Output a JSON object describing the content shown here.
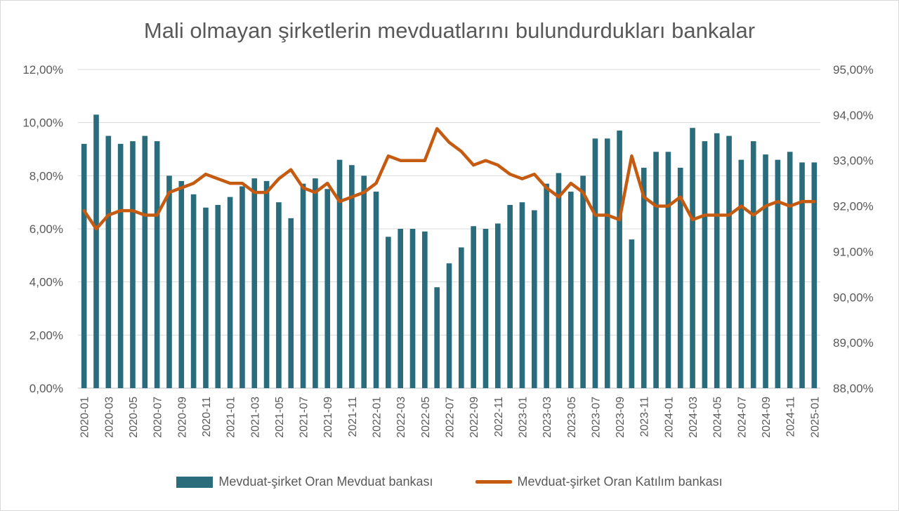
{
  "chart_data": {
    "type": "bar",
    "title": "Mali olmayan şirketlerin mevduatlarını bulundurdukları bankalar",
    "categories": [
      "2020-01",
      "2020-02",
      "2020-03",
      "2020-04",
      "2020-05",
      "2020-06",
      "2020-07",
      "2020-08",
      "2020-09",
      "2020-10",
      "2020-11",
      "2020-12",
      "2021-01",
      "2021-02",
      "2021-03",
      "2021-04",
      "2021-05",
      "2021-06",
      "2021-07",
      "2021-08",
      "2021-09",
      "2021-10",
      "2021-11",
      "2021-12",
      "2022-01",
      "2022-02",
      "2022-03",
      "2022-04",
      "2022-05",
      "2022-06",
      "2022-07",
      "2022-08",
      "2022-09",
      "2022-10",
      "2022-11",
      "2022-12",
      "2023-01",
      "2023-02",
      "2023-03",
      "2023-04",
      "2023-05",
      "2023-06",
      "2023-07",
      "2023-08",
      "2023-09",
      "2023-10",
      "2023-11",
      "2023-12",
      "2024-01",
      "2024-02",
      "2024-03",
      "2024-04",
      "2024-05",
      "2024-06",
      "2024-07",
      "2024-08",
      "2024-09",
      "2024-10",
      "2024-11",
      "2024-12",
      "2025-01"
    ],
    "x_tick_labels": [
      "2020-01",
      "2020-03",
      "2020-05",
      "2020-07",
      "2020-09",
      "2020-11",
      "2021-01",
      "2021-03",
      "2021-05",
      "2021-07",
      "2021-09",
      "2021-11",
      "2022-01",
      "2022-03",
      "2022-05",
      "2022-07",
      "2022-09",
      "2022-11",
      "2023-01",
      "2023-03",
      "2023-05",
      "2023-07",
      "2023-09",
      "2023-11",
      "2024-01",
      "2024-03",
      "2024-05",
      "2024-07",
      "2024-09",
      "2024-11",
      "2025-01"
    ],
    "series": [
      {
        "name": "Mevduat-şirket Oran Mevduat bankası",
        "type": "bar",
        "axis": "left",
        "color": "#2a6b7c",
        "values": [
          9.2,
          10.3,
          9.5,
          9.2,
          9.3,
          9.5,
          9.3,
          8.0,
          7.8,
          7.3,
          6.8,
          6.9,
          7.2,
          7.6,
          7.9,
          7.8,
          7.0,
          6.4,
          7.7,
          7.9,
          7.5,
          8.6,
          8.4,
          8.0,
          7.4,
          5.7,
          6.0,
          6.0,
          5.9,
          3.8,
          4.7,
          5.3,
          6.1,
          6.0,
          6.2,
          6.9,
          7.0,
          6.7,
          7.7,
          8.1,
          7.4,
          8.0,
          9.4,
          9.4,
          9.7,
          5.6,
          8.3,
          8.9,
          8.9,
          8.3,
          9.8,
          9.3,
          9.6,
          9.5,
          8.6,
          9.3,
          8.8,
          8.6,
          8.9,
          8.5,
          8.5
        ]
      },
      {
        "name": "Mevduat-şirket Oran Katılım bankası",
        "type": "line",
        "axis": "right",
        "color": "#c55a11",
        "values": [
          91.9,
          91.5,
          91.8,
          91.9,
          91.9,
          91.8,
          91.8,
          92.3,
          92.4,
          92.5,
          92.7,
          92.6,
          92.5,
          92.5,
          92.3,
          92.3,
          92.6,
          92.8,
          92.4,
          92.3,
          92.5,
          92.1,
          92.2,
          92.3,
          92.5,
          93.1,
          93.0,
          93.0,
          93.0,
          93.7,
          93.4,
          93.2,
          92.9,
          93.0,
          92.9,
          92.7,
          92.6,
          92.7,
          92.4,
          92.2,
          92.5,
          92.3,
          91.8,
          91.8,
          91.7,
          93.1,
          92.2,
          92.0,
          92.0,
          92.2,
          91.7,
          91.8,
          91.8,
          91.8,
          92.0,
          91.8,
          92.0,
          92.1,
          92.0,
          92.1,
          92.1
        ]
      }
    ],
    "left_axis": {
      "min": 0,
      "max": 12,
      "step": 2,
      "tick_labels": [
        "0,00%",
        "2,00%",
        "4,00%",
        "6,00%",
        "8,00%",
        "10,00%",
        "12,00%"
      ]
    },
    "right_axis": {
      "min": 88,
      "max": 95,
      "step": 1,
      "tick_labels": [
        "88,00%",
        "89,00%",
        "90,00%",
        "91,00%",
        "92,00%",
        "93,00%",
        "94,00%",
        "95,00%"
      ]
    },
    "grid": true,
    "legend_position": "bottom"
  }
}
